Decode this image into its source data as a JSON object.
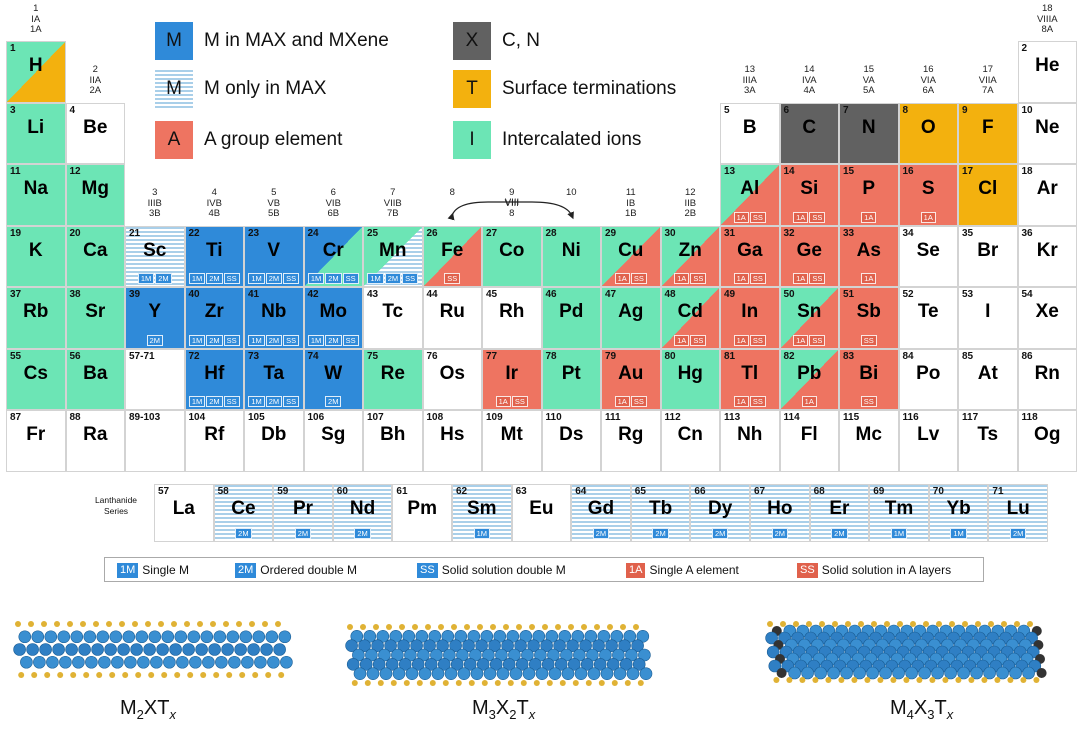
{
  "colors": {
    "m_max_mxene": "#2f8ad9",
    "m_only_max_stripe": "#a9cfe9",
    "x_cn": "#616161",
    "termination": "#f3b10e",
    "a_group": "#ee7461",
    "intercalated": "#6ce5b5",
    "none": "#ffffff",
    "badge_m": "#2f8ad9",
    "badge_a": "#e0614c"
  },
  "legend": [
    {
      "key": "mm",
      "swatch": "M",
      "text": "M in MAX and MXene"
    },
    {
      "key": "mo",
      "swatch": "M",
      "text": "M only in MAX"
    },
    {
      "key": "a",
      "swatch": "A",
      "text": "A group element"
    },
    {
      "key": "x",
      "swatch": "X",
      "text": "C, N"
    },
    {
      "key": "t",
      "swatch": "T",
      "text": "Surface terminations"
    },
    {
      "key": "i",
      "swatch": "I",
      "text": "Intercalated ions"
    }
  ],
  "group_headers": [
    {
      "col": 1,
      "lines": [
        "1",
        "IA",
        "1A"
      ]
    },
    {
      "col": 2,
      "lines": [
        "2",
        "IIA",
        "2A"
      ]
    },
    {
      "col": 3,
      "lines": [
        "3",
        "IIIB",
        "3B"
      ]
    },
    {
      "col": 4,
      "lines": [
        "4",
        "IVB",
        "4B"
      ]
    },
    {
      "col": 5,
      "lines": [
        "5",
        "VB",
        "5B"
      ]
    },
    {
      "col": 6,
      "lines": [
        "6",
        "VIB",
        "6B"
      ]
    },
    {
      "col": 7,
      "lines": [
        "7",
        "VIIB",
        "7B"
      ]
    },
    {
      "col": 8,
      "lines": [
        "8"
      ]
    },
    {
      "col": 9,
      "lines": [
        "9",
        "VIII",
        "8"
      ]
    },
    {
      "col": 10,
      "lines": [
        "10"
      ]
    },
    {
      "col": 11,
      "lines": [
        "11",
        "IB",
        "1B"
      ]
    },
    {
      "col": 12,
      "lines": [
        "12",
        "IIB",
        "2B"
      ]
    },
    {
      "col": 13,
      "lines": [
        "13",
        "IIIA",
        "3A"
      ]
    },
    {
      "col": 14,
      "lines": [
        "14",
        "IVA",
        "4A"
      ]
    },
    {
      "col": 15,
      "lines": [
        "15",
        "VA",
        "5A"
      ]
    },
    {
      "col": 16,
      "lines": [
        "16",
        "VIA",
        "6A"
      ]
    },
    {
      "col": 17,
      "lines": [
        "17",
        "VIIA",
        "7A"
      ]
    },
    {
      "col": 18,
      "lines": [
        "18",
        "VIIIA",
        "8A"
      ]
    }
  ],
  "elements": [
    {
      "n": "1",
      "s": "H",
      "p": 1,
      "g": 1,
      "c": [
        "i",
        "t"
      ]
    },
    {
      "n": "2",
      "s": "He",
      "p": 1,
      "g": 18,
      "c": [
        "none"
      ]
    },
    {
      "n": "3",
      "s": "Li",
      "p": 2,
      "g": 1,
      "c": [
        "i"
      ]
    },
    {
      "n": "4",
      "s": "Be",
      "p": 2,
      "g": 2,
      "c": [
        "none"
      ]
    },
    {
      "n": "5",
      "s": "B",
      "p": 2,
      "g": 13,
      "c": [
        "none"
      ]
    },
    {
      "n": "6",
      "s": "C",
      "p": 2,
      "g": 14,
      "c": [
        "x"
      ]
    },
    {
      "n": "7",
      "s": "N",
      "p": 2,
      "g": 15,
      "c": [
        "x"
      ]
    },
    {
      "n": "8",
      "s": "O",
      "p": 2,
      "g": 16,
      "c": [
        "t"
      ]
    },
    {
      "n": "9",
      "s": "F",
      "p": 2,
      "g": 17,
      "c": [
        "t"
      ]
    },
    {
      "n": "10",
      "s": "Ne",
      "p": 2,
      "g": 18,
      "c": [
        "none"
      ]
    },
    {
      "n": "11",
      "s": "Na",
      "p": 3,
      "g": 1,
      "c": [
        "i"
      ]
    },
    {
      "n": "12",
      "s": "Mg",
      "p": 3,
      "g": 2,
      "c": [
        "i"
      ]
    },
    {
      "n": "13",
      "s": "Al",
      "p": 3,
      "g": 13,
      "c": [
        "i",
        "a"
      ],
      "b": [
        "1A",
        "SS"
      ]
    },
    {
      "n": "14",
      "s": "Si",
      "p": 3,
      "g": 14,
      "c": [
        "a"
      ],
      "b": [
        "1A",
        "SS"
      ]
    },
    {
      "n": "15",
      "s": "P",
      "p": 3,
      "g": 15,
      "c": [
        "a"
      ],
      "b": [
        "1A"
      ]
    },
    {
      "n": "16",
      "s": "S",
      "p": 3,
      "g": 16,
      "c": [
        "a"
      ],
      "b": [
        "1A"
      ]
    },
    {
      "n": "17",
      "s": "Cl",
      "p": 3,
      "g": 17,
      "c": [
        "t"
      ]
    },
    {
      "n": "18",
      "s": "Ar",
      "p": 3,
      "g": 18,
      "c": [
        "none"
      ]
    },
    {
      "n": "19",
      "s": "K",
      "p": 4,
      "g": 1,
      "c": [
        "i"
      ]
    },
    {
      "n": "20",
      "s": "Ca",
      "p": 4,
      "g": 2,
      "c": [
        "i"
      ]
    },
    {
      "n": "21",
      "s": "Sc",
      "p": 4,
      "g": 3,
      "c": [
        "mo"
      ],
      "b": [
        "1M",
        "2M"
      ]
    },
    {
      "n": "22",
      "s": "Ti",
      "p": 4,
      "g": 4,
      "c": [
        "mm"
      ],
      "b": [
        "1M",
        "2M",
        "SS"
      ]
    },
    {
      "n": "23",
      "s": "V",
      "p": 4,
      "g": 5,
      "c": [
        "mm"
      ],
      "b": [
        "1M",
        "2M",
        "SS"
      ]
    },
    {
      "n": "24",
      "s": "Cr",
      "p": 4,
      "g": 6,
      "c": [
        "mm",
        "i"
      ],
      "b": [
        "1M",
        "2M",
        "SS"
      ]
    },
    {
      "n": "25",
      "s": "Mn",
      "p": 4,
      "g": 7,
      "c": [
        "i",
        "mo"
      ],
      "b": [
        "1M",
        "2M",
        "SS"
      ]
    },
    {
      "n": "26",
      "s": "Fe",
      "p": 4,
      "g": 8,
      "c": [
        "i",
        "a"
      ],
      "b": [
        "SS"
      ]
    },
    {
      "n": "27",
      "s": "Co",
      "p": 4,
      "g": 9,
      "c": [
        "i"
      ]
    },
    {
      "n": "28",
      "s": "Ni",
      "p": 4,
      "g": 10,
      "c": [
        "i"
      ]
    },
    {
      "n": "29",
      "s": "Cu",
      "p": 4,
      "g": 11,
      "c": [
        "i",
        "a"
      ],
      "b": [
        "1A",
        "SS"
      ]
    },
    {
      "n": "30",
      "s": "Zn",
      "p": 4,
      "g": 12,
      "c": [
        "i",
        "a"
      ],
      "b": [
        "1A",
        "SS"
      ]
    },
    {
      "n": "31",
      "s": "Ga",
      "p": 4,
      "g": 13,
      "c": [
        "a"
      ],
      "b": [
        "1A",
        "SS"
      ]
    },
    {
      "n": "32",
      "s": "Ge",
      "p": 4,
      "g": 14,
      "c": [
        "a"
      ],
      "b": [
        "1A",
        "SS"
      ]
    },
    {
      "n": "33",
      "s": "As",
      "p": 4,
      "g": 15,
      "c": [
        "a"
      ],
      "b": [
        "1A"
      ]
    },
    {
      "n": "34",
      "s": "Se",
      "p": 4,
      "g": 16,
      "c": [
        "none"
      ]
    },
    {
      "n": "35",
      "s": "Br",
      "p": 4,
      "g": 17,
      "c": [
        "none"
      ]
    },
    {
      "n": "36",
      "s": "Kr",
      "p": 4,
      "g": 18,
      "c": [
        "none"
      ]
    },
    {
      "n": "37",
      "s": "Rb",
      "p": 5,
      "g": 1,
      "c": [
        "i"
      ]
    },
    {
      "n": "38",
      "s": "Sr",
      "p": 5,
      "g": 2,
      "c": [
        "i"
      ]
    },
    {
      "n": "39",
      "s": "Y",
      "p": 5,
      "g": 3,
      "c": [
        "mm"
      ],
      "b": [
        "2M"
      ]
    },
    {
      "n": "40",
      "s": "Zr",
      "p": 5,
      "g": 4,
      "c": [
        "mm"
      ],
      "b": [
        "1M",
        "2M",
        "SS"
      ]
    },
    {
      "n": "41",
      "s": "Nb",
      "p": 5,
      "g": 5,
      "c": [
        "mm"
      ],
      "b": [
        "1M",
        "2M",
        "SS"
      ]
    },
    {
      "n": "42",
      "s": "Mo",
      "p": 5,
      "g": 6,
      "c": [
        "mm"
      ],
      "b": [
        "1M",
        "2M",
        "SS"
      ]
    },
    {
      "n": "43",
      "s": "Tc",
      "p": 5,
      "g": 7,
      "c": [
        "none"
      ]
    },
    {
      "n": "44",
      "s": "Ru",
      "p": 5,
      "g": 8,
      "c": [
        "none"
      ]
    },
    {
      "n": "45",
      "s": "Rh",
      "p": 5,
      "g": 9,
      "c": [
        "none"
      ]
    },
    {
      "n": "46",
      "s": "Pd",
      "p": 5,
      "g": 10,
      "c": [
        "i"
      ]
    },
    {
      "n": "47",
      "s": "Ag",
      "p": 5,
      "g": 11,
      "c": [
        "i"
      ]
    },
    {
      "n": "48",
      "s": "Cd",
      "p": 5,
      "g": 12,
      "c": [
        "i",
        "a"
      ],
      "b": [
        "1A",
        "SS"
      ]
    },
    {
      "n": "49",
      "s": "In",
      "p": 5,
      "g": 13,
      "c": [
        "a"
      ],
      "b": [
        "1A",
        "SS"
      ]
    },
    {
      "n": "50",
      "s": "Sn",
      "p": 5,
      "g": 14,
      "c": [
        "i",
        "a"
      ],
      "b": [
        "1A",
        "SS"
      ]
    },
    {
      "n": "51",
      "s": "Sb",
      "p": 5,
      "g": 15,
      "c": [
        "a"
      ],
      "b": [
        "SS"
      ]
    },
    {
      "n": "52",
      "s": "Te",
      "p": 5,
      "g": 16,
      "c": [
        "none"
      ]
    },
    {
      "n": "53",
      "s": "I",
      "p": 5,
      "g": 17,
      "c": [
        "none"
      ]
    },
    {
      "n": "54",
      "s": "Xe",
      "p": 5,
      "g": 18,
      "c": [
        "none"
      ]
    },
    {
      "n": "55",
      "s": "Cs",
      "p": 6,
      "g": 1,
      "c": [
        "i"
      ]
    },
    {
      "n": "56",
      "s": "Ba",
      "p": 6,
      "g": 2,
      "c": [
        "i"
      ]
    },
    {
      "n": "57-71",
      "s": "",
      "p": 6,
      "g": 3,
      "c": [
        "none"
      ]
    },
    {
      "n": "72",
      "s": "Hf",
      "p": 6,
      "g": 4,
      "c": [
        "mm"
      ],
      "b": [
        "1M",
        "2M",
        "SS"
      ]
    },
    {
      "n": "73",
      "s": "Ta",
      "p": 6,
      "g": 5,
      "c": [
        "mm"
      ],
      "b": [
        "1M",
        "2M",
        "SS"
      ]
    },
    {
      "n": "74",
      "s": "W",
      "p": 6,
      "g": 6,
      "c": [
        "mm"
      ],
      "b": [
        "2M"
      ]
    },
    {
      "n": "75",
      "s": "Re",
      "p": 6,
      "g": 7,
      "c": [
        "i"
      ]
    },
    {
      "n": "76",
      "s": "Os",
      "p": 6,
      "g": 8,
      "c": [
        "none"
      ]
    },
    {
      "n": "77",
      "s": "Ir",
      "p": 6,
      "g": 9,
      "c": [
        "a"
      ],
      "b": [
        "1A",
        "SS"
      ]
    },
    {
      "n": "78",
      "s": "Pt",
      "p": 6,
      "g": 10,
      "c": [
        "i"
      ]
    },
    {
      "n": "79",
      "s": "Au",
      "p": 6,
      "g": 11,
      "c": [
        "a"
      ],
      "b": [
        "1A",
        "SS"
      ]
    },
    {
      "n": "80",
      "s": "Hg",
      "p": 6,
      "g": 12,
      "c": [
        "i"
      ]
    },
    {
      "n": "81",
      "s": "Tl",
      "p": 6,
      "g": 13,
      "c": [
        "a"
      ],
      "b": [
        "1A",
        "SS"
      ]
    },
    {
      "n": "82",
      "s": "Pb",
      "p": 6,
      "g": 14,
      "c": [
        "i",
        "a"
      ],
      "b": [
        "1A"
      ]
    },
    {
      "n": "83",
      "s": "Bi",
      "p": 6,
      "g": 15,
      "c": [
        "a"
      ],
      "b": [
        "SS"
      ]
    },
    {
      "n": "84",
      "s": "Po",
      "p": 6,
      "g": 16,
      "c": [
        "none"
      ]
    },
    {
      "n": "85",
      "s": "At",
      "p": 6,
      "g": 17,
      "c": [
        "none"
      ]
    },
    {
      "n": "86",
      "s": "Rn",
      "p": 6,
      "g": 18,
      "c": [
        "none"
      ]
    },
    {
      "n": "87",
      "s": "Fr",
      "p": 7,
      "g": 1,
      "c": [
        "none"
      ]
    },
    {
      "n": "88",
      "s": "Ra",
      "p": 7,
      "g": 2,
      "c": [
        "none"
      ]
    },
    {
      "n": "89-103",
      "s": "",
      "p": 7,
      "g": 3,
      "c": [
        "none"
      ]
    },
    {
      "n": "104",
      "s": "Rf",
      "p": 7,
      "g": 4,
      "c": [
        "none"
      ]
    },
    {
      "n": "105",
      "s": "Db",
      "p": 7,
      "g": 5,
      "c": [
        "none"
      ]
    },
    {
      "n": "106",
      "s": "Sg",
      "p": 7,
      "g": 6,
      "c": [
        "none"
      ]
    },
    {
      "n": "107",
      "s": "Bh",
      "p": 7,
      "g": 7,
      "c": [
        "none"
      ]
    },
    {
      "n": "108",
      "s": "Hs",
      "p": 7,
      "g": 8,
      "c": [
        "none"
      ]
    },
    {
      "n": "109",
      "s": "Mt",
      "p": 7,
      "g": 9,
      "c": [
        "none"
      ]
    },
    {
      "n": "110",
      "s": "Ds",
      "p": 7,
      "g": 10,
      "c": [
        "none"
      ]
    },
    {
      "n": "111",
      "s": "Rg",
      "p": 7,
      "g": 11,
      "c": [
        "none"
      ]
    },
    {
      "n": "112",
      "s": "Cn",
      "p": 7,
      "g": 12,
      "c": [
        "none"
      ]
    },
    {
      "n": "113",
      "s": "Nh",
      "p": 7,
      "g": 13,
      "c": [
        "none"
      ]
    },
    {
      "n": "114",
      "s": "Fl",
      "p": 7,
      "g": 14,
      "c": [
        "none"
      ]
    },
    {
      "n": "115",
      "s": "Mc",
      "p": 7,
      "g": 15,
      "c": [
        "none"
      ]
    },
    {
      "n": "116",
      "s": "Lv",
      "p": 7,
      "g": 16,
      "c": [
        "none"
      ]
    },
    {
      "n": "117",
      "s": "Ts",
      "p": 7,
      "g": 17,
      "c": [
        "none"
      ]
    },
    {
      "n": "118",
      "s": "Og",
      "p": 7,
      "g": 18,
      "c": [
        "none"
      ]
    }
  ],
  "lanthanide_label": "Lanthanide Series",
  "lanthanides": [
    {
      "n": "57",
      "s": "La",
      "c": [
        "none"
      ]
    },
    {
      "n": "58",
      "s": "Ce",
      "c": [
        "mo"
      ],
      "b": [
        "2M"
      ]
    },
    {
      "n": "59",
      "s": "Pr",
      "c": [
        "mo"
      ],
      "b": [
        "2M"
      ]
    },
    {
      "n": "60",
      "s": "Nd",
      "c": [
        "mo"
      ],
      "b": [
        "2M"
      ]
    },
    {
      "n": "61",
      "s": "Pm",
      "c": [
        "none"
      ]
    },
    {
      "n": "62",
      "s": "Sm",
      "c": [
        "mo"
      ],
      "b": [
        "1M"
      ]
    },
    {
      "n": "63",
      "s": "Eu",
      "c": [
        "none"
      ]
    },
    {
      "n": "64",
      "s": "Gd",
      "c": [
        "mo"
      ],
      "b": [
        "2M"
      ]
    },
    {
      "n": "65",
      "s": "Tb",
      "c": [
        "mo"
      ],
      "b": [
        "2M"
      ]
    },
    {
      "n": "66",
      "s": "Dy",
      "c": [
        "mo"
      ],
      "b": [
        "2M"
      ]
    },
    {
      "n": "67",
      "s": "Ho",
      "c": [
        "mo"
      ],
      "b": [
        "2M"
      ]
    },
    {
      "n": "68",
      "s": "Er",
      "c": [
        "mo"
      ],
      "b": [
        "2M"
      ]
    },
    {
      "n": "69",
      "s": "Tm",
      "c": [
        "mo"
      ],
      "b": [
        "1M"
      ]
    },
    {
      "n": "70",
      "s": "Yb",
      "c": [
        "mo"
      ],
      "b": [
        "1M"
      ]
    },
    {
      "n": "71",
      "s": "Lu",
      "c": [
        "mo"
      ],
      "b": [
        "2M"
      ]
    }
  ],
  "group_8_10_label": "VIII",
  "badge_legend": [
    {
      "badge": "1M",
      "text": "Single M",
      "kind": "M"
    },
    {
      "badge": "2M",
      "text": "Ordered double M",
      "kind": "M"
    },
    {
      "badge": "SS",
      "text": "Solid solution double M",
      "kind": "M"
    },
    {
      "badge": "1A",
      "text": "Single A element",
      "kind": "A"
    },
    {
      "badge": "SS",
      "text": "Solid solution in A layers",
      "kind": "A"
    }
  ],
  "structures": [
    {
      "m": "2",
      "x": "",
      "t": "x",
      "layers": 5
    },
    {
      "m": "3",
      "x": "2",
      "t": "x",
      "layers": 7
    },
    {
      "m": "4",
      "x": "3",
      "t": "x",
      "layers": 9
    }
  ]
}
